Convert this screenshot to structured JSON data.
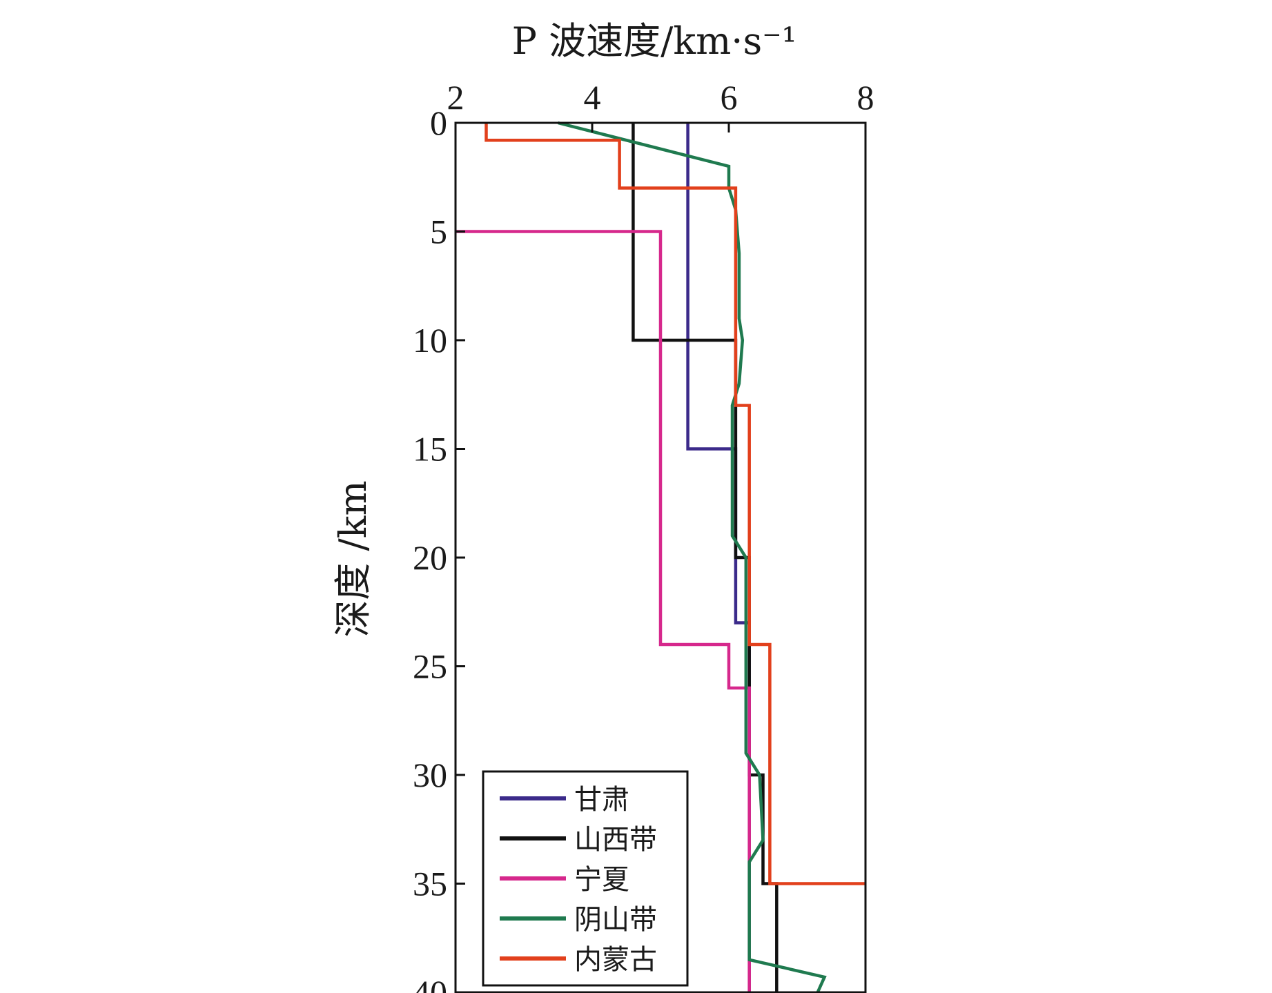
{
  "chart_data": {
    "type": "line",
    "xlabel": "P 波速度/km·s⁻¹",
    "ylabel": "深度 /km",
    "xlim": [
      2,
      8
    ],
    "ylim": [
      40,
      0
    ],
    "y_inverted": true,
    "x_axis_position": "top",
    "xticks": [
      2,
      4,
      6,
      8
    ],
    "yticks": [
      0,
      5,
      10,
      15,
      20,
      25,
      30,
      35,
      40
    ],
    "legend_position": "bottom-left",
    "series": [
      {
        "name": "甘肃",
        "color": "#3b2a8a",
        "points": [
          [
            5.4,
            0
          ],
          [
            5.4,
            15
          ],
          [
            6.1,
            15
          ],
          [
            6.1,
            23
          ],
          [
            6.3,
            23
          ],
          [
            6.3,
            40
          ]
        ]
      },
      {
        "name": "山西带",
        "color": "#111111",
        "points": [
          [
            4.6,
            0
          ],
          [
            4.6,
            10
          ],
          [
            6.1,
            10
          ],
          [
            6.1,
            20
          ],
          [
            6.3,
            20
          ],
          [
            6.3,
            30
          ],
          [
            6.5,
            30
          ],
          [
            6.5,
            35
          ],
          [
            6.7,
            35
          ],
          [
            6.7,
            40
          ]
        ]
      },
      {
        "name": "宁夏",
        "color": "#d6288c",
        "points": [
          [
            2.0,
            5
          ],
          [
            5.0,
            5
          ],
          [
            5.0,
            24
          ],
          [
            6.0,
            24
          ],
          [
            6.0,
            26
          ],
          [
            6.3,
            26
          ],
          [
            6.3,
            40
          ]
        ]
      },
      {
        "name": "阴山带",
        "color": "#1f7a4f",
        "points": [
          [
            3.5,
            0
          ],
          [
            6.0,
            2
          ],
          [
            6.0,
            3
          ],
          [
            6.1,
            4
          ],
          [
            6.15,
            6
          ],
          [
            6.15,
            9
          ],
          [
            6.2,
            10
          ],
          [
            6.15,
            12
          ],
          [
            6.05,
            13
          ],
          [
            6.05,
            19
          ],
          [
            6.25,
            20
          ],
          [
            6.25,
            29
          ],
          [
            6.45,
            30
          ],
          [
            6.5,
            33
          ],
          [
            6.3,
            34
          ],
          [
            6.3,
            38.5
          ],
          [
            7.4,
            39.3
          ],
          [
            7.3,
            40
          ]
        ]
      },
      {
        "name": "内蒙古",
        "color": "#e2401c",
        "points": [
          [
            2.45,
            0
          ],
          [
            2.45,
            0.8
          ],
          [
            4.4,
            0.8
          ],
          [
            4.4,
            3
          ],
          [
            6.1,
            3
          ],
          [
            6.1,
            13
          ],
          [
            6.3,
            13
          ],
          [
            6.3,
            24
          ],
          [
            6.6,
            24
          ],
          [
            6.6,
            35
          ],
          [
            8.0,
            35
          ]
        ]
      }
    ]
  }
}
